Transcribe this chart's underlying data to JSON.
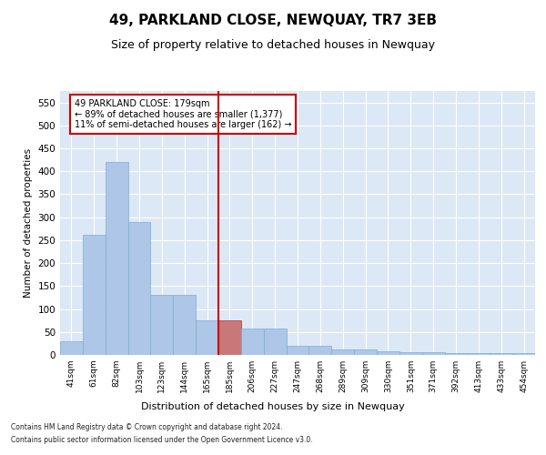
{
  "title": "49, PARKLAND CLOSE, NEWQUAY, TR7 3EB",
  "subtitle": "Size of property relative to detached houses in Newquay",
  "xlabel": "Distribution of detached houses by size in Newquay",
  "ylabel": "Number of detached properties",
  "footer_line1": "Contains HM Land Registry data © Crown copyright and database right 2024.",
  "footer_line2": "Contains public sector information licensed under the Open Government Licence v3.0.",
  "bar_labels": [
    "41sqm",
    "61sqm",
    "82sqm",
    "103sqm",
    "123sqm",
    "144sqm",
    "165sqm",
    "185sqm",
    "206sqm",
    "227sqm",
    "247sqm",
    "268sqm",
    "289sqm",
    "309sqm",
    "330sqm",
    "351sqm",
    "371sqm",
    "392sqm",
    "413sqm",
    "433sqm",
    "454sqm"
  ],
  "bar_values": [
    30,
    262,
    420,
    290,
    130,
    130,
    75,
    75,
    58,
    58,
    20,
    20,
    12,
    12,
    8,
    5,
    5,
    3,
    3,
    3,
    3
  ],
  "bar_color": "#aec6e8",
  "bar_edge_color": "#7bafd4",
  "highlight_bar_index": 7,
  "highlight_bar_color": "#c87878",
  "highlight_bar_edge_color": "#b03030",
  "vline_color": "#cc0000",
  "annotation_title": "49 PARKLAND CLOSE: 179sqm",
  "annotation_line1": "← 89% of detached houses are smaller (1,377)",
  "annotation_line2": "11% of semi-detached houses are larger (162) →",
  "annotation_box_color": "#ffffff",
  "annotation_box_edge": "#cc0000",
  "ylim": [
    0,
    575
  ],
  "yticks": [
    0,
    50,
    100,
    150,
    200,
    250,
    300,
    350,
    400,
    450,
    500,
    550
  ],
  "background_color": "#dce8f5",
  "grid_color": "#ffffff",
  "title_fontsize": 11,
  "subtitle_fontsize": 9
}
